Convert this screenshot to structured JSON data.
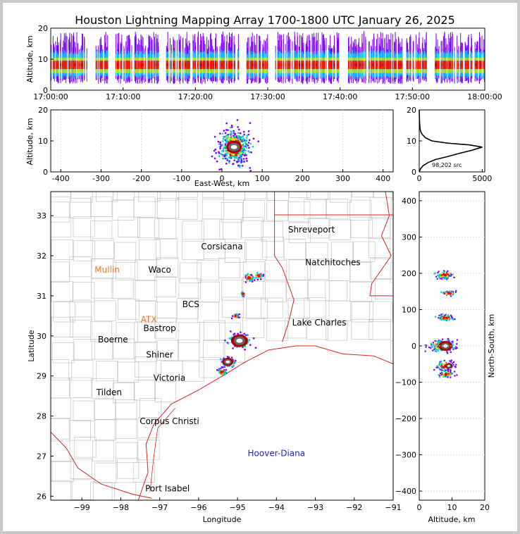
{
  "title": "Houston Lightning Mapping Array 1700-1800 UTC January 26, 2025",
  "colors": {
    "border_state": "#dd2222",
    "border_county": "#bbbbbb",
    "density_ramp": [
      "#7a00ff",
      "#0044ff",
      "#00c8ff",
      "#00dd66",
      "#aaee00",
      "#ffdd00",
      "#ff8800",
      "#ff0000",
      "#aa0000",
      "#666666",
      "#ffffff"
    ]
  },
  "chart_data": [
    {
      "id": "time_altitude",
      "type": "heatmap",
      "ylabel": "Altitude, km",
      "xlim": [
        "17:00:00",
        "18:00:00"
      ],
      "ylim": [
        0,
        20
      ],
      "xticks": [
        "17:00:00",
        "17:10:00",
        "17:20:00",
        "17:30:00",
        "17:40:00",
        "17:50:00",
        "18:00:00"
      ],
      "yticks": [
        0,
        10,
        20
      ],
      "core_altitude_km": 8,
      "activity_minutes": [
        0,
        1,
        2,
        3,
        4,
        6,
        7,
        9,
        10,
        11,
        12,
        13,
        14,
        16,
        17,
        18,
        19,
        20,
        21,
        22,
        23,
        24,
        25,
        27,
        28,
        29,
        31,
        32,
        33,
        34,
        35,
        36,
        37,
        38,
        39,
        41,
        42,
        43,
        44,
        45,
        46,
        47,
        48,
        49,
        50,
        51,
        53,
        54,
        55,
        56,
        57,
        58,
        59
      ]
    },
    {
      "id": "ew_altitude",
      "type": "heatmap",
      "xlabel": "East-West, km",
      "ylabel": "Altitude, km",
      "xlim": [
        -425,
        425
      ],
      "ylim": [
        0,
        20
      ],
      "xticks": [
        -400,
        -300,
        -200,
        -100,
        0,
        100,
        200,
        300,
        400
      ],
      "yticks": [
        0,
        10,
        20
      ],
      "core": {
        "x_km": 30,
        "alt_km": 8
      }
    },
    {
      "id": "altitude_histogram",
      "type": "line",
      "xlim": [
        0,
        5200
      ],
      "ylim": [
        0,
        20
      ],
      "xticks": [
        0,
        5000
      ],
      "yticks": [
        0,
        10,
        20
      ],
      "annotation": "98,202 src",
      "profile": [
        [
          0,
          0
        ],
        [
          100,
          1
        ],
        [
          300,
          2
        ],
        [
          700,
          3
        ],
        [
          1300,
          4
        ],
        [
          2300,
          5
        ],
        [
          3200,
          6
        ],
        [
          4200,
          7
        ],
        [
          5000,
          8
        ],
        [
          4000,
          8.7
        ],
        [
          2200,
          9.3
        ],
        [
          1000,
          10
        ],
        [
          500,
          11
        ],
        [
          250,
          12
        ],
        [
          120,
          13
        ],
        [
          60,
          14
        ],
        [
          30,
          16
        ],
        [
          10,
          18
        ],
        [
          0,
          20
        ]
      ]
    },
    {
      "id": "plan_view",
      "type": "heatmap",
      "xlabel": "Longitude",
      "ylabel": "Latitude",
      "xlim": [
        -99.8,
        -91
      ],
      "ylim": [
        25.9,
        33.6
      ],
      "xticks": [
        -99,
        -98,
        -97,
        -96,
        -95,
        -94,
        -93,
        -92,
        -91
      ],
      "yticks": [
        26,
        27,
        28,
        29,
        30,
        31,
        32,
        33
      ],
      "cities": [
        {
          "name": "Shreveport",
          "lon": -93.1,
          "lat": 32.58,
          "color": "#000000"
        },
        {
          "name": "Corsicana",
          "lon": -95.4,
          "lat": 32.16,
          "color": "#000000"
        },
        {
          "name": "Mullin",
          "lon": -98.35,
          "lat": 31.58,
          "color": "#ee7733"
        },
        {
          "name": "Waco",
          "lon": -97.0,
          "lat": 31.58,
          "color": "#000000"
        },
        {
          "name": "Natchitoches",
          "lon": -92.55,
          "lat": 31.76,
          "color": "#000000"
        },
        {
          "name": "BCS",
          "lon": -96.2,
          "lat": 30.72,
          "color": "#000000"
        },
        {
          "name": "ATX",
          "lon": -97.28,
          "lat": 30.34,
          "color": "#ee7733"
        },
        {
          "name": "Bastrop",
          "lon": -97.0,
          "lat": 30.12,
          "color": "#000000"
        },
        {
          "name": "Lake Charles",
          "lon": -92.9,
          "lat": 30.26,
          "color": "#000000"
        },
        {
          "name": "Boerne",
          "lon": -98.2,
          "lat": 29.84,
          "color": "#000000"
        },
        {
          "name": "Shiner",
          "lon": -97.0,
          "lat": 29.46,
          "color": "#000000"
        },
        {
          "name": "Victoria",
          "lon": -96.75,
          "lat": 28.88,
          "color": "#000000"
        },
        {
          "name": "Tilden",
          "lon": -98.3,
          "lat": 28.52,
          "color": "#000000"
        },
        {
          "name": "Corpus Christi",
          "lon": -96.75,
          "lat": 27.8,
          "color": "#000000"
        },
        {
          "name": "Hoover-Diana",
          "lon": -94.0,
          "lat": 27.0,
          "color": "#2222cc"
        },
        {
          "name": "Port Isabel",
          "lon": -96.8,
          "lat": 26.12,
          "color": "#000000"
        }
      ],
      "cells": [
        {
          "lon": -94.95,
          "lat": 29.88,
          "size": 1.0
        },
        {
          "lon": -95.25,
          "lat": 29.35,
          "size": 0.65
        },
        {
          "lon": -95.4,
          "lat": 29.1,
          "size": 0.4
        },
        {
          "lon": -94.7,
          "lat": 31.45,
          "size": 0.45
        },
        {
          "lon": -94.45,
          "lat": 31.5,
          "size": 0.35
        },
        {
          "lon": -94.85,
          "lat": 31.05,
          "size": 0.22
        },
        {
          "lon": -95.05,
          "lat": 30.5,
          "size": 0.3
        }
      ]
    },
    {
      "id": "altitude_ns",
      "type": "heatmap",
      "xlabel": "Altitude, km",
      "ylabel": "North-South, km",
      "xlim": [
        0,
        20
      ],
      "ylim": [
        -425,
        425
      ],
      "xticks": [
        0,
        10,
        20
      ],
      "yticks": [
        -400,
        -300,
        -200,
        -100,
        0,
        100,
        200,
        300,
        400
      ],
      "clusters": [
        {
          "ns": 195,
          "alt": 8,
          "size": 0.45
        },
        {
          "ns": 145,
          "alt": 9,
          "size": 0.2
        },
        {
          "ns": 78,
          "alt": 8,
          "size": 0.35
        },
        {
          "ns": 0,
          "alt": 7,
          "size": 1.0
        },
        {
          "ns": -55,
          "alt": 8,
          "size": 0.55
        },
        {
          "ns": -78,
          "alt": 8,
          "size": 0.3
        }
      ]
    }
  ]
}
